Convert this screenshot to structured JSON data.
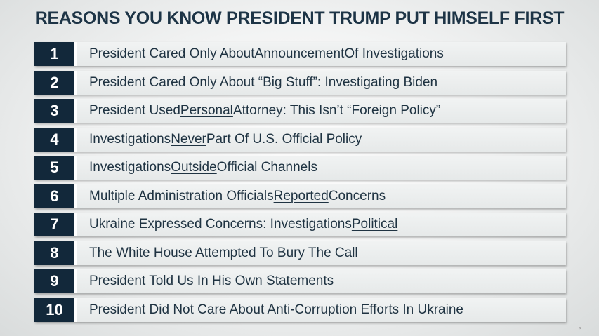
{
  "slide": {
    "title": "REASONS YOU KNOW PRESIDENT TRUMP PUT HIMSELF FIRST",
    "slide_number": "3"
  },
  "reasons": [
    {
      "number": "1",
      "pre": "President Cared Only About ",
      "underline": "Announcement",
      "post": " Of Investigations"
    },
    {
      "number": "2",
      "pre": "President Cared Only About “Big Stuff”: Investigating Biden",
      "underline": "",
      "post": ""
    },
    {
      "number": "3",
      "pre": "President Used ",
      "underline": "Personal",
      "post": " Attorney: This Isn’t “Foreign Policy”"
    },
    {
      "number": "4",
      "pre": "Investigations ",
      "underline": "Never",
      "post": " Part Of U.S. Official Policy"
    },
    {
      "number": "5",
      "pre": "Investigations ",
      "underline": "Outside",
      "post": " Official Channels"
    },
    {
      "number": "6",
      "pre": "Multiple Administration Officials ",
      "underline": "Reported",
      "post": " Concerns"
    },
    {
      "number": "7",
      "pre": "Ukraine Expressed Concerns: Investigations ",
      "underline": "Political",
      "post": ""
    },
    {
      "number": "8",
      "pre": "The White House Attempted To Bury The Call",
      "underline": "",
      "post": ""
    },
    {
      "number": "9",
      "pre": "President Told Us In His Own Statements",
      "underline": "",
      "post": ""
    },
    {
      "number": "10",
      "pre": "President Did Not Care About Anti-Corruption Efforts In Ukraine",
      "underline": "",
      "post": ""
    }
  ]
}
